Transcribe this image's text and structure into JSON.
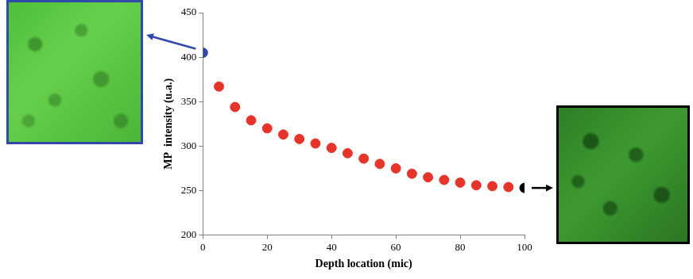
{
  "chart_data": {
    "type": "scatter",
    "x_label": "Depth location (mic)",
    "y_label": "MP  intensity (u.a.)",
    "series": [
      {
        "color": "#2f4aa8",
        "x": [
          0
        ],
        "values": [
          405
        ]
      },
      {
        "color": "#e5352b",
        "x": [
          5,
          10,
          15,
          20,
          25,
          30,
          35,
          40,
          45,
          50,
          55,
          60,
          65,
          70,
          75,
          80,
          85,
          90,
          95
        ],
        "values": [
          367,
          344,
          329,
          320,
          313,
          308,
          303,
          298,
          292,
          286,
          280,
          275,
          269,
          265,
          262,
          259,
          256,
          255,
          254
        ]
      },
      {
        "color": "#000000",
        "x": [
          100
        ],
        "values": [
          253
        ]
      }
    ],
    "xlim": [
      0,
      100
    ],
    "xticks": [
      0,
      20,
      40,
      60,
      80,
      100
    ],
    "ylim": [
      200,
      450
    ],
    "yticks": [
      200,
      250,
      300,
      350,
      400,
      450
    ],
    "grid": false
  }
}
